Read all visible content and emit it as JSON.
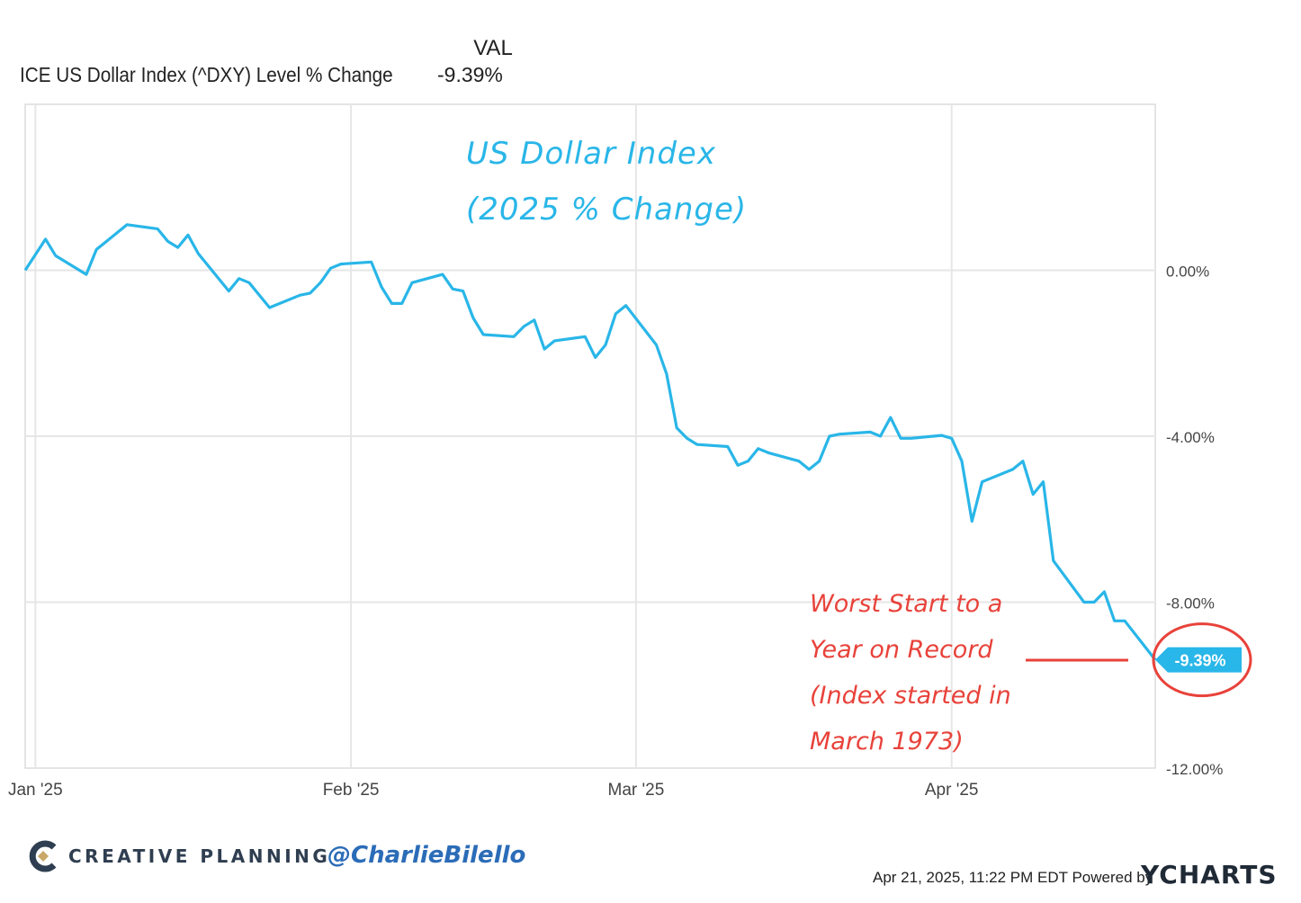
{
  "legend": {
    "column_header": "VAL",
    "series_name": "ICE US Dollar Index (^DXY) Level % Change",
    "series_value": "-9.39%"
  },
  "colors": {
    "line": "#29b6e8",
    "annotation_red": "#e8423a",
    "grid": "#e6e6e6",
    "axis_text": "#444444"
  },
  "chart_data": {
    "type": "line",
    "title_annotation": [
      "US Dollar Index",
      "(2025 % Change)"
    ],
    "x_axis": {
      "ticks": [
        {
          "date": "2025-01-01",
          "label": "Jan '25"
        },
        {
          "date": "2025-02-01",
          "label": "Feb '25"
        },
        {
          "date": "2025-03-01",
          "label": "Mar '25"
        },
        {
          "date": "2025-04-01",
          "label": "Apr '25"
        }
      ],
      "range": [
        "2024-12-31",
        "2025-04-21"
      ]
    },
    "y_axis": {
      "ticks": [
        {
          "value": 0,
          "label": "0.00%"
        },
        {
          "value": -4,
          "label": "-4.00%"
        },
        {
          "value": -8,
          "label": "-8.00%"
        },
        {
          "value": -12,
          "label": "-12.00%"
        }
      ],
      "ylim": [
        -12,
        4
      ],
      "position": "right"
    },
    "grid": true,
    "series": [
      {
        "name": "ICE US Dollar Index (^DXY) Level % Change",
        "x": [
          "2024-12-31",
          "2025-01-02",
          "2025-01-03",
          "2025-01-06",
          "2025-01-07",
          "2025-01-08",
          "2025-01-10",
          "2025-01-13",
          "2025-01-14",
          "2025-01-15",
          "2025-01-16",
          "2025-01-17",
          "2025-01-20",
          "2025-01-21",
          "2025-01-22",
          "2025-01-24",
          "2025-01-27",
          "2025-01-28",
          "2025-01-29",
          "2025-01-30",
          "2025-01-31",
          "2025-02-03",
          "2025-02-04",
          "2025-02-05",
          "2025-02-06",
          "2025-02-07",
          "2025-02-10",
          "2025-02-11",
          "2025-02-12",
          "2025-02-13",
          "2025-02-14",
          "2025-02-17",
          "2025-02-18",
          "2025-02-19",
          "2025-02-20",
          "2025-02-21",
          "2025-02-24",
          "2025-02-25",
          "2025-02-26",
          "2025-02-27",
          "2025-02-28",
          "2025-03-03",
          "2025-03-04",
          "2025-03-05",
          "2025-03-06",
          "2025-03-07",
          "2025-03-10",
          "2025-03-11",
          "2025-03-12",
          "2025-03-13",
          "2025-03-14",
          "2025-03-17",
          "2025-03-18",
          "2025-03-19",
          "2025-03-20",
          "2025-03-21",
          "2025-03-24",
          "2025-03-25",
          "2025-03-26",
          "2025-03-27",
          "2025-03-28",
          "2025-03-31",
          "2025-04-01",
          "2025-04-02",
          "2025-04-03",
          "2025-04-04",
          "2025-04-07",
          "2025-04-08",
          "2025-04-09",
          "2025-04-10",
          "2025-04-11",
          "2025-04-14",
          "2025-04-15",
          "2025-04-16",
          "2025-04-17",
          "2025-04-18",
          "2025-04-21"
        ],
        "values": [
          0.0,
          0.75,
          0.35,
          -0.1,
          0.5,
          0.7,
          1.1,
          1.0,
          0.7,
          0.55,
          0.85,
          0.4,
          -0.5,
          -0.2,
          -0.3,
          -0.9,
          -0.6,
          -0.55,
          -0.3,
          0.05,
          0.15,
          0.2,
          -0.4,
          -0.8,
          -0.8,
          -0.3,
          -0.1,
          -0.45,
          -0.5,
          -1.15,
          -1.55,
          -1.6,
          -1.35,
          -1.2,
          -1.9,
          -1.7,
          -1.6,
          -2.1,
          -1.8,
          -1.05,
          -0.85,
          -1.8,
          -2.5,
          -3.8,
          -4.05,
          -4.2,
          -4.25,
          -4.7,
          -4.6,
          -4.3,
          -4.4,
          -4.6,
          -4.8,
          -4.6,
          -4.0,
          -3.95,
          -3.9,
          -4.0,
          -3.55,
          -4.05,
          -4.05,
          -3.98,
          -4.05,
          -4.6,
          -6.05,
          -5.1,
          -4.8,
          -4.6,
          -5.4,
          -5.1,
          -7.0,
          -8.0,
          -8.0,
          -7.75,
          -8.45,
          -8.45,
          -9.39
        ]
      }
    ],
    "end_label": "-9.39%",
    "annotation": [
      "Worst Start to a",
      "Year on Record",
      "(Index started in",
      "March 1973)"
    ]
  },
  "footer": {
    "brand": "CREATIVE PLANNING",
    "handle": "@CharlieBilello",
    "timestamp": "Apr 21, 2025, 11:22 PM EDT Powered by",
    "ycharts": "YCHARTS"
  }
}
